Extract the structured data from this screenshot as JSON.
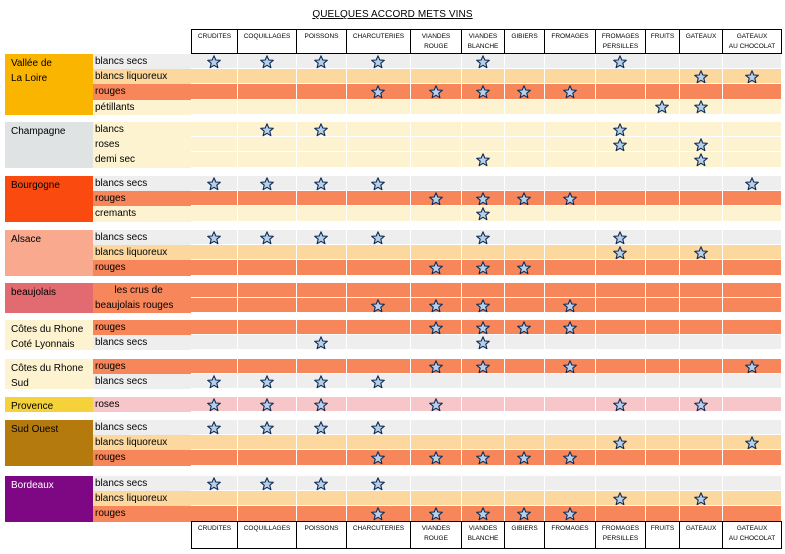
{
  "title": "QUELQUES ACCORD METS VINS",
  "columns": [
    [
      "CRUDITES"
    ],
    [
      "COQUILLAGES"
    ],
    [
      "POISSONS"
    ],
    [
      "CHARCUTERIES"
    ],
    [
      "VIANDES",
      "ROUGE"
    ],
    [
      "VIANDES",
      "BLANCHE"
    ],
    [
      "GIBIERS"
    ],
    [
      "FROMAGES"
    ],
    [
      "FROMAGES",
      "PERSILLES"
    ],
    [
      "FRUITS"
    ],
    [
      "GATEAUX"
    ],
    [
      "GATEAUX",
      "AU CHOCOLAT"
    ]
  ],
  "colors": {
    "star_fill": "#b8cfe6",
    "star_stroke": "#0c2a57",
    "peach": "#fcd89e",
    "cream": "#fdf3d0",
    "coral": "#f7865a",
    "grey": "#eeeeee",
    "pink": "#f7c6c8",
    "pink_dark": "#e98f95"
  },
  "regions": [
    {
      "name": [
        "Vallée de",
        "La Loire"
      ],
      "color": "#f9b500",
      "rows": [
        {
          "label": "blancs secs",
          "bg": "grey",
          "stars": [
            0,
            1,
            2,
            3,
            5,
            8
          ]
        },
        {
          "label": "blancs liquoreux",
          "bg": "peach",
          "stars": [
            10,
            11
          ]
        },
        {
          "label": "rouges",
          "bg": "coral",
          "stars": [
            3,
            4,
            5,
            6,
            7
          ]
        },
        {
          "label": "pétillants",
          "bg": "cream",
          "stars": [
            9,
            10
          ]
        }
      ]
    },
    {
      "name": [
        "Champagne"
      ],
      "color": "#dfe3e3",
      "rows": [
        {
          "label": "blancs",
          "bg": "cream",
          "stars": [
            1,
            2,
            8
          ]
        },
        {
          "label": "roses",
          "bg": "cream",
          "stars": [
            8,
            10
          ]
        },
        {
          "label": "demi sec",
          "bg": "cream",
          "stars": [
            5,
            10
          ]
        }
      ]
    },
    {
      "name": [
        "Bourgogne"
      ],
      "color": "#fa4a10",
      "rows": [
        {
          "label": "blancs secs",
          "bg": "grey",
          "stars": [
            0,
            1,
            2,
            3,
            11
          ]
        },
        {
          "label": "rouges",
          "bg": "coral",
          "stars": [
            4,
            5,
            6,
            7
          ]
        },
        {
          "label": "cremants",
          "bg": "cream",
          "stars": [
            5
          ]
        }
      ]
    },
    {
      "name": [
        "Alsace"
      ],
      "color": "#f8a98e",
      "rows": [
        {
          "label": "blancs secs",
          "bg": "grey",
          "stars": [
            0,
            1,
            2,
            3,
            5,
            8
          ]
        },
        {
          "label": "blancs liquoreux",
          "bg": "peach",
          "stars": [
            8,
            10
          ]
        },
        {
          "label": "rouges",
          "bg": "coral",
          "stars": [
            4,
            5,
            6
          ]
        }
      ]
    },
    {
      "name": [
        "beaujolais"
      ],
      "color": "#e16b70",
      "rows": [
        {
          "label": "       les crus de",
          "bg": "coral",
          "stars": []
        },
        {
          "label": "beaujolais rouges",
          "bg": "coral",
          "stars": [
            3,
            4,
            5,
            7
          ]
        }
      ]
    },
    {
      "name": [
        "Côtes du Rhone",
        "Coté Lyonnais"
      ],
      "color": "#fdf3d0",
      "rows": [
        {
          "label": "rouges",
          "bg": "coral",
          "stars": [
            4,
            5,
            6,
            7
          ]
        },
        {
          "label": "blancs secs",
          "bg": "grey",
          "stars": [
            2,
            5
          ]
        }
      ]
    },
    {
      "name": [
        "Côtes du Rhone",
        "Sud"
      ],
      "color": "#fdf3d0",
      "rows": [
        {
          "label": "rouges",
          "bg": "coral",
          "stars": [
            4,
            5,
            7,
            11
          ]
        },
        {
          "label": "blancs secs",
          "bg": "grey",
          "stars": [
            0,
            1,
            2,
            3
          ]
        }
      ]
    },
    {
      "name": [
        "Provence"
      ],
      "color": "#f6d23a",
      "rows": [
        {
          "label": "roses",
          "bg": "pink",
          "stars": [
            0,
            1,
            2,
            4,
            8,
            10
          ]
        }
      ]
    },
    {
      "name": [
        "Sud Ouest"
      ],
      "color": "#b57a0e",
      "rows": [
        {
          "label": "blancs secs",
          "bg": "grey",
          "stars": [
            0,
            1,
            2,
            3
          ]
        },
        {
          "label": "blancs liquoreux",
          "bg": "peach",
          "stars": [
            8,
            11
          ]
        },
        {
          "label": "rouges",
          "bg": "coral",
          "stars": [
            3,
            4,
            5,
            6,
            7
          ]
        }
      ]
    },
    {
      "name": [
        "Bordeaux"
      ],
      "color": "#7e0883",
      "name_color": "#ffffff",
      "rows": [
        {
          "label": "blancs secs",
          "bg": "grey",
          "stars": [
            0,
            1,
            2,
            3
          ]
        },
        {
          "label": "blancs liquoreux",
          "bg": "peach",
          "stars": [
            8,
            10
          ]
        },
        {
          "label": "rouges",
          "bg": "coral",
          "stars": [
            3,
            4,
            5,
            6,
            7
          ]
        }
      ]
    }
  ]
}
